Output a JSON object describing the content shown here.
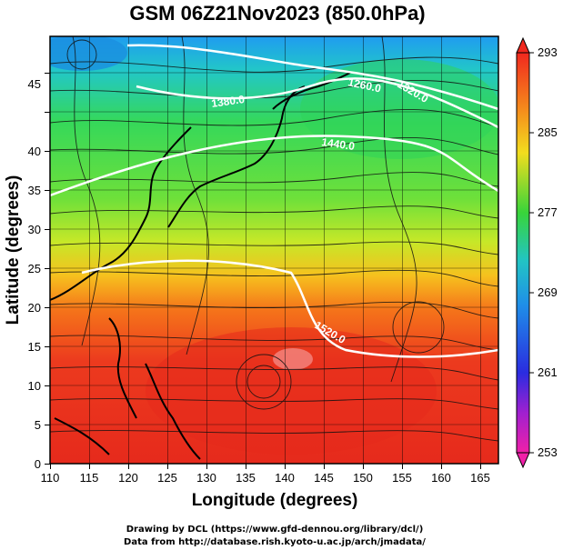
{
  "title": "GSM 06Z21Nov2023 (850.0hPa)",
  "x_axis": {
    "label": "Longitude (degrees)",
    "ticks": [
      "110",
      "115",
      "120",
      "125",
      "130",
      "135",
      "140",
      "145",
      "150",
      "155",
      "160",
      "165"
    ]
  },
  "y_axis": {
    "label": "Latitude  (degrees)",
    "ticks": [
      "0",
      "5",
      "10",
      "15",
      "20",
      "25",
      "30",
      "35",
      "40",
      "45"
    ]
  },
  "colorbar": {
    "ticks": [
      "293",
      "285",
      "277",
      "269",
      "261",
      "253"
    ],
    "min": 253,
    "max": 293
  },
  "contour_labels": [
    "1260.0",
    "1320.0",
    "1380.0",
    "1440.0",
    "1520.0"
  ],
  "credits": {
    "line1": "Drawing by DCL (https://www.gfd-dennou.org/library/dcl/)",
    "line2": "Data from http://database.rish.kyoto-u.ac.jp/arch/jmadata/"
  },
  "colors": {
    "warm": "#e8321e",
    "mid": "#f7e11a",
    "green": "#2fd35a",
    "cold": "#1a8fe0",
    "contour": "#ffffff"
  }
}
